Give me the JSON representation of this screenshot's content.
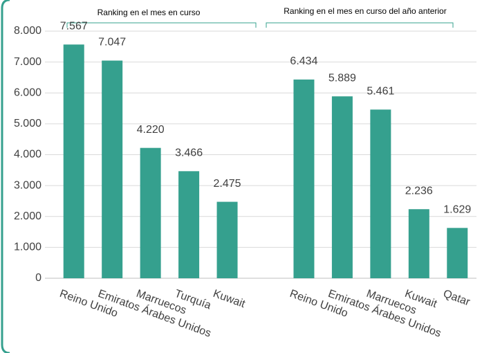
{
  "chart_data": {
    "type": "bar",
    "annotations": [
      "Ranking en el mes en curso",
      "Ranking en el mes en curso del año anterior"
    ],
    "categories": [
      "Reino Unido",
      "Emiratos Árabes Unidos",
      "Marruecos",
      "Turquía",
      "Kuwait",
      null,
      "Reino Unido",
      "Emiratos Árabes Unidos",
      "Marruecos",
      "Kuwait",
      "Qatar"
    ],
    "values": [
      7567,
      7047,
      4220,
      3466,
      2475,
      null,
      6434,
      5889,
      5461,
      2236,
      1629
    ],
    "value_labels": [
      "7.567",
      "7.047",
      "4.220",
      "3.466",
      "2.475",
      null,
      "6.434",
      "5.889",
      "5.461",
      "2.236",
      "1.629"
    ],
    "color": "#35a08e",
    "ylim": [
      0,
      8000
    ],
    "yticks": [
      0,
      {
        "value": 1000,
        "label": "1.000"
      },
      {
        "value": 2000,
        "label": "2.000"
      },
      {
        "value": 3000,
        "label": "3.000"
      },
      {
        "value": 4000,
        "label": "4.000"
      },
      {
        "value": 5000,
        "label": "5.000"
      },
      {
        "value": 6000,
        "label": "6.000"
      },
      {
        "value": 7000,
        "label": "7.000"
      },
      {
        "value": 8000,
        "label": "8.000"
      }
    ],
    "grid": true
  }
}
